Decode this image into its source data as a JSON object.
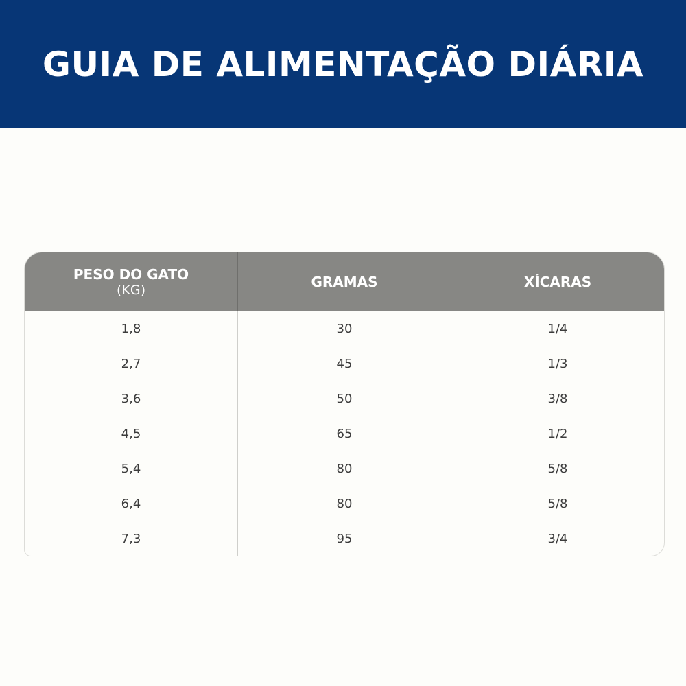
{
  "title": "GUIA DE ALIMENTAÇÃO DIÁRIA",
  "table": {
    "headers": [
      {
        "label": "PESO DO GATO",
        "sub": "(KG)"
      },
      {
        "label": "GRAMAS"
      },
      {
        "label": "XÍCARAS"
      }
    ],
    "rows": [
      [
        "1,8",
        "30",
        "1/4"
      ],
      [
        "2,7",
        "45",
        "1/3"
      ],
      [
        "3,6",
        "50",
        "3/8"
      ],
      [
        "4,5",
        "65",
        "1/2"
      ],
      [
        "5,4",
        "80",
        "5/8"
      ],
      [
        "6,4",
        "80",
        "5/8"
      ],
      [
        "7,3",
        "95",
        "3/4"
      ]
    ]
  },
  "colors": {
    "banner": "#073676",
    "header": "#878784",
    "background": "#fdfdfa"
  }
}
